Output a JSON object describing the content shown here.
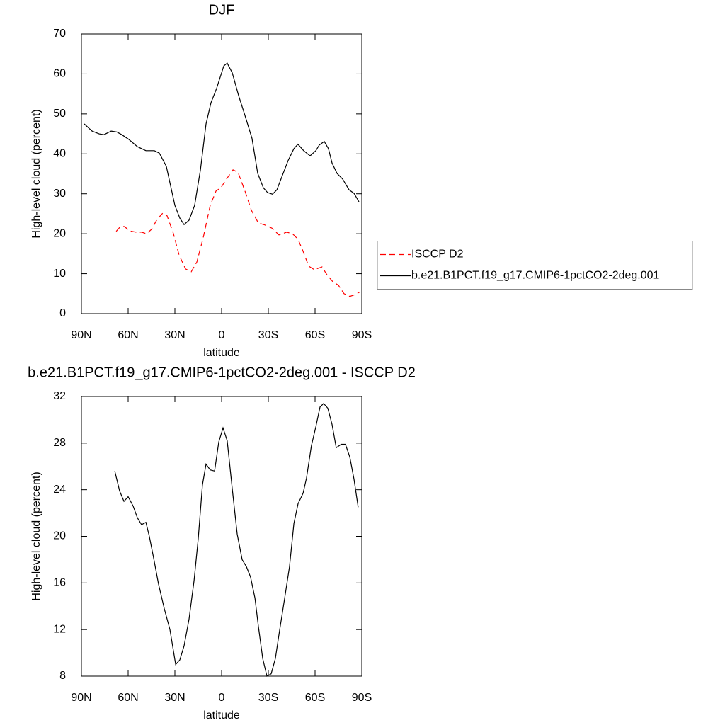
{
  "chart_data": [
    {
      "type": "line",
      "title": "DJF",
      "x_label": "latitude",
      "y_label": "High-level cloud (percent)",
      "xlim": [
        90,
        -90
      ],
      "ylim": [
        0,
        70
      ],
      "xticks": [
        {
          "value": 90,
          "label": "90N"
        },
        {
          "value": 60,
          "label": "60N"
        },
        {
          "value": 30,
          "label": "30N"
        },
        0,
        {
          "value": -30,
          "label": "30S"
        },
        {
          "value": -60,
          "label": "60S"
        },
        {
          "value": -90,
          "label": "90S"
        }
      ],
      "yticks": [
        0,
        10,
        20,
        30,
        40,
        50,
        60,
        70
      ],
      "legend": "right",
      "series": [
        {
          "name": "ISCCP D2",
          "color": "#ff0000",
          "line_style": "dashed",
          "x": [
            67.7,
            65,
            62.3,
            59.1,
            55,
            51.4,
            48.2,
            45,
            41.4,
            37.7,
            35,
            30.9,
            27.3,
            23.2,
            19.5,
            15.9,
            11.8,
            7.3,
            3.6,
            0.5,
            -3.2,
            -7.3,
            -10.5,
            -15,
            -19.1,
            -23.6,
            -27.7,
            -32.3,
            -36.8,
            -41.8,
            -45.5,
            -49.1,
            -52.3,
            -55.9,
            -59.5,
            -64.5,
            -67.7,
            -71.4,
            -75,
            -78.6,
            -82.3,
            -85.9,
            -89.1
          ],
          "values": [
            20.6,
            21.8,
            21.8,
            20.7,
            20.4,
            20.4,
            20.0,
            21.1,
            23.6,
            25.2,
            24.5,
            20.0,
            14.7,
            11.2,
            10.5,
            12.9,
            19.0,
            27.1,
            30.7,
            31.5,
            33.7,
            36.0,
            35.4,
            30.7,
            25.9,
            22.7,
            22.2,
            21.4,
            19.7,
            20.4,
            20.0,
            18.6,
            15.6,
            11.9,
            11.0,
            11.7,
            9.7,
            8.0,
            7.1,
            5.0,
            4.3,
            4.8,
            5.5
          ]
        },
        {
          "name": "b.e21.B1PCT.f19_g17.CMIP6-1pctCO2-2deg.001",
          "color": "#000000",
          "line_style": "solid",
          "x": [
            88.2,
            83.2,
            78.6,
            75.5,
            70.9,
            67.3,
            64.1,
            59.5,
            54.1,
            48.6,
            43.2,
            40,
            35.5,
            30,
            26.8,
            24.1,
            20.9,
            17.3,
            13.6,
            10,
            6.8,
            3.2,
            -1.4,
            -3.6,
            -6.8,
            -10.9,
            -15,
            -19.5,
            -23.2,
            -26.8,
            -29.5,
            -32.7,
            -35.5,
            -39,
            -42.7,
            -46.4,
            -49,
            -52.7,
            -56.8,
            -60.5,
            -62.7,
            -65.9,
            -68.6,
            -70.9,
            -74.1,
            -77.7,
            -81.8,
            -85,
            -88.2
          ],
          "values": [
            47.5,
            45.7,
            45.0,
            44.8,
            45.7,
            45.5,
            44.8,
            43.6,
            41.8,
            40.8,
            40.8,
            40.2,
            36.9,
            27.1,
            23.9,
            22.3,
            23.4,
            27.1,
            36.0,
            47.5,
            52.8,
            56.4,
            62.0,
            62.7,
            60.3,
            54.6,
            49.6,
            43.9,
            35.1,
            31.5,
            30.3,
            29.9,
            31.0,
            34.6,
            38.3,
            41.3,
            42.4,
            40.8,
            39.5,
            40.8,
            42.2,
            43.1,
            41.3,
            37.7,
            35.1,
            33.7,
            31.0,
            30.1,
            28.0
          ]
        }
      ]
    },
    {
      "type": "line",
      "title": "b.e21.B1PCT.f19_g17.CMIP6-1pctCO2-2deg.001 - ISCCP D2",
      "x_label": "latitude",
      "y_label": "High-level cloud (percent)",
      "xlim": [
        90,
        -90
      ],
      "ylim": [
        8,
        32
      ],
      "xticks": [
        {
          "value": 90,
          "label": "90N"
        },
        {
          "value": 60,
          "label": "60N"
        },
        {
          "value": 30,
          "label": "30N"
        },
        0,
        {
          "value": -30,
          "label": "30S"
        },
        {
          "value": -60,
          "label": "60S"
        },
        {
          "value": -90,
          "label": "90S"
        }
      ],
      "yticks": [
        8,
        12,
        16,
        20,
        24,
        28,
        32
      ],
      "series": [
        {
          "color": "#000000",
          "line_style": "solid",
          "x": [
            68.6,
            65.5,
            62.7,
            60,
            56.8,
            54.1,
            51.4,
            48.6,
            46.4,
            43.6,
            40.5,
            36.8,
            33.2,
            29.5,
            26.8,
            24.1,
            20.9,
            17.7,
            15,
            12.3,
            10,
            7.3,
            4.5,
            1.8,
            -0.9,
            -3.6,
            -6.8,
            -10,
            -13.2,
            -15.9,
            -18.6,
            -21.4,
            -23.6,
            -26.4,
            -29.1,
            -31.8,
            -34.5,
            -37.3,
            -40.5,
            -43.6,
            -46.4,
            -49.1,
            -52.3,
            -54.5,
            -57.7,
            -60.5,
            -63.2,
            -65.5,
            -68.2,
            -70.9,
            -73.6,
            -76.8,
            -79.5,
            -82.3,
            -85,
            -87.7
          ],
          "values": [
            25.6,
            23.9,
            23.0,
            23.4,
            22.6,
            21.6,
            21.0,
            21.2,
            20.0,
            18.1,
            15.9,
            13.8,
            12.0,
            9.0,
            9.4,
            10.6,
            12.9,
            16.2,
            19.8,
            24.4,
            26.2,
            25.7,
            25.6,
            28.1,
            29.3,
            28.2,
            24.1,
            20.2,
            18.0,
            17.4,
            16.5,
            14.7,
            12.3,
            9.5,
            8.0,
            8.2,
            9.5,
            12.0,
            14.7,
            17.4,
            21.1,
            22.8,
            23.7,
            25.0,
            27.8,
            29.4,
            31.1,
            31.4,
            31.0,
            29.6,
            27.6,
            27.9,
            27.9,
            26.8,
            24.9,
            22.5
          ]
        }
      ]
    }
  ]
}
